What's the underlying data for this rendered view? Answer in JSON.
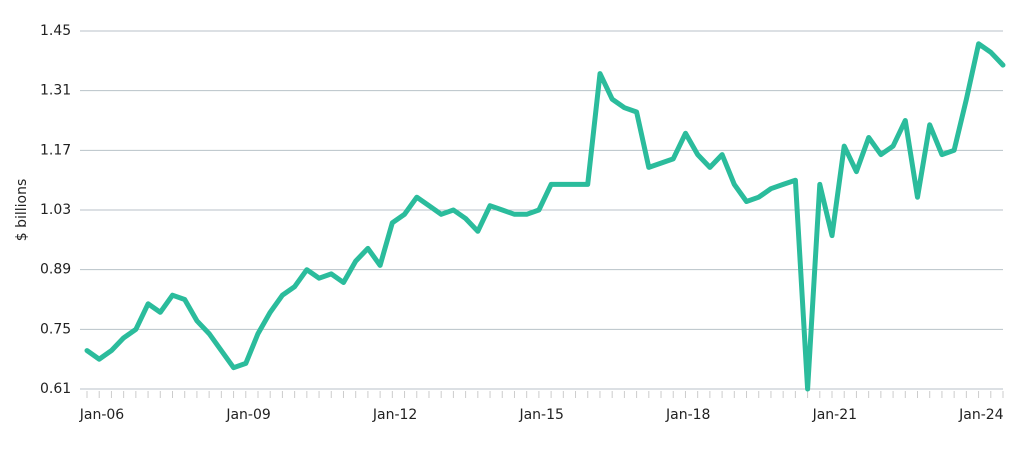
{
  "chart_data": {
    "type": "line",
    "y_label": "$ billions",
    "categories": [
      "Jan-06",
      null,
      null,
      null,
      null,
      null,
      null,
      null,
      null,
      null,
      null,
      null,
      "Jan-09",
      null,
      null,
      null,
      null,
      null,
      null,
      null,
      null,
      null,
      null,
      null,
      "Jan-12",
      null,
      null,
      null,
      null,
      null,
      null,
      null,
      null,
      null,
      null,
      null,
      "Jan-15",
      null,
      null,
      null,
      null,
      null,
      null,
      null,
      null,
      null,
      null,
      null,
      "Jan-18",
      null,
      null,
      null,
      null,
      null,
      null,
      null,
      null,
      null,
      null,
      null,
      "Jan-21",
      null,
      null,
      null,
      null,
      null,
      null,
      null,
      null,
      null,
      null,
      null,
      "Jan-24",
      null,
      null,
      null
    ],
    "series": [
      {
        "color": "#2bbc9c",
        "values": [
          0.7,
          0.68,
          0.7,
          0.73,
          0.75,
          0.81,
          0.79,
          0.83,
          0.82,
          0.77,
          0.74,
          0.7,
          0.66,
          0.67,
          0.74,
          0.79,
          0.83,
          0.85,
          0.89,
          0.87,
          0.88,
          0.86,
          0.91,
          0.94,
          0.9,
          1.0,
          1.02,
          1.06,
          1.04,
          1.02,
          1.03,
          1.01,
          0.98,
          1.04,
          1.03,
          1.02,
          1.02,
          1.03,
          1.09,
          1.09,
          1.09,
          1.09,
          1.35,
          1.29,
          1.27,
          1.26,
          1.13,
          1.14,
          1.15,
          1.21,
          1.16,
          1.13,
          1.16,
          1.09,
          1.05,
          1.06,
          1.08,
          1.09,
          1.1,
          0.61,
          1.09,
          0.97,
          1.18,
          1.12,
          1.2,
          1.16,
          1.18,
          1.24,
          1.06,
          1.23,
          1.16,
          1.17,
          1.29,
          1.42,
          1.4,
          1.37
        ]
      }
    ],
    "ylim": [
      0.61,
      1.45
    ],
    "yticks": [
      {
        "value": 0.61,
        "label": "0.61"
      },
      {
        "value": 0.75,
        "label": "0.75"
      },
      {
        "value": 0.89,
        "label": "0.89"
      },
      {
        "value": 1.03,
        "label": "1.03"
      },
      {
        "value": 1.17,
        "label": "1.17"
      },
      {
        "value": 1.31,
        "label": "1.31"
      },
      {
        "value": 1.45,
        "label": "1.45"
      }
    ],
    "grid": true
  }
}
